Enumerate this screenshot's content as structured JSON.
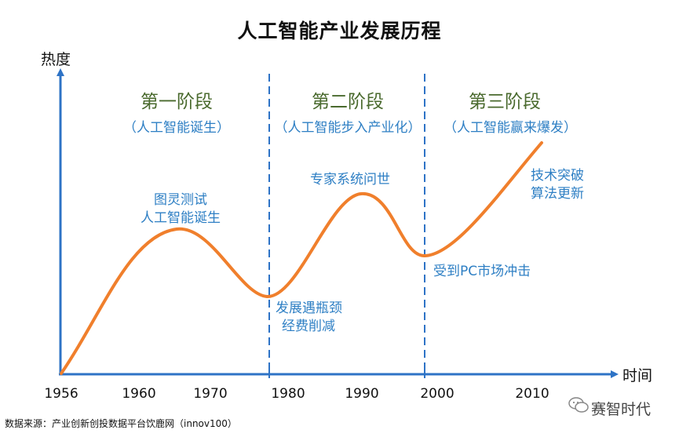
{
  "title": "人工智能产业发展历程",
  "y_axis_label": "热度",
  "x_axis_label": "时间",
  "stages": [
    {
      "name": "第一阶段",
      "subtitle": "（人工智能诞生）"
    },
    {
      "name": "第二阶段",
      "subtitle": "（人工智能步入产业化）"
    },
    {
      "name": "第三阶段",
      "subtitle": "（人工智能赢来爆发）"
    }
  ],
  "annotations": [
    {
      "line1": "图灵测试",
      "line2": "人工智能诞生"
    },
    {
      "line1": "发展遇瓶颈",
      "line2": "经费削减"
    },
    {
      "line1": "专家系统问世"
    },
    {
      "line1": "受到PC市场冲击"
    },
    {
      "line1": "技术突破",
      "line2": "算法更新"
    }
  ],
  "x_ticks": [
    "1956",
    "1960",
    "1970",
    "1980",
    "1990",
    "2000",
    "2010"
  ],
  "source": "数据来源：产业创新创投数据平台饮鹿网（innov100）",
  "watermark": "赛智时代",
  "colors": {
    "curve": "#f07f2c",
    "axis": "#2e73c6",
    "stage_title": "#4a6a2e",
    "annotation": "#2e7fc4"
  }
}
